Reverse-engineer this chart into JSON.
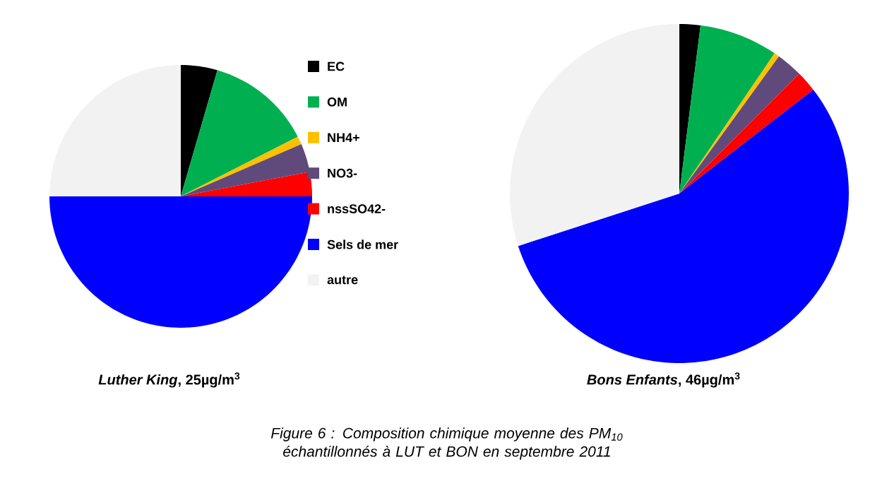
{
  "chart_data": [
    {
      "type": "pie",
      "title": "*Luther King*, 25µg/m$^{3}$",
      "categories": [
        "EC",
        "OM",
        "NH4+",
        "NO3-",
        "nssSO42-",
        "Sels de mer",
        "autre"
      ],
      "values": [
        4.5,
        13,
        1,
        3.5,
        3,
        50,
        25
      ],
      "colors": [
        "#000000",
        "#00b050",
        "#ffc000",
        "#604a7b",
        "#ff0000",
        "#0000ff",
        "#f2f2f2"
      ],
      "legend": "right",
      "annotations": [
        "Figure 6 : Composition chimique moyenne des PM$_{10}$ échantillonnés à LUT et BON en septembre 2011"
      ]
    },
    {
      "type": "pie",
      "title": "*Bons Enfants*, 46µg/m$^{3}$",
      "categories": [
        null,
        null,
        null,
        null,
        null,
        null,
        null
      ],
      "values": [
        2,
        7.5,
        0.5,
        2.5,
        2,
        55.5,
        30
      ],
      "colors": [
        "#000000",
        "#00b050",
        "#ffc000",
        "#604a7b",
        "#ff0000",
        "#0000ff",
        "#f2f2f2"
      ]
    }
  ]
}
